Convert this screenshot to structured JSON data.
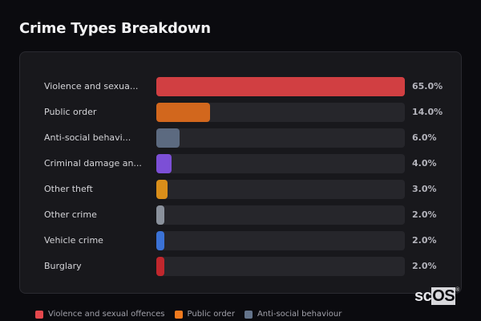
{
  "header": {
    "title": "Crime Types Breakdown"
  },
  "chart_data": {
    "type": "bar",
    "orientation": "horizontal",
    "title": "Crime Types Breakdown",
    "categories": [
      "Violence and sexual offences",
      "Public order",
      "Anti-social behaviour",
      "Criminal damage and arson",
      "Other theft",
      "Other crime",
      "Vehicle crime",
      "Burglary"
    ],
    "display_labels": [
      "Violence and sexua...",
      "Public order",
      "Anti-social behavi...",
      "Criminal damage an...",
      "Other theft",
      "Other crime",
      "Vehicle crime",
      "Burglary"
    ],
    "values": [
      65.0,
      14.0,
      6.0,
      4.0,
      3.0,
      2.0,
      2.0,
      2.0
    ],
    "value_labels": [
      "65.0%",
      "14.0%",
      "6.0%",
      "4.0%",
      "3.0%",
      "2.0%",
      "2.0%",
      "2.0%"
    ],
    "colors": [
      "#d13f42",
      "#d2671d",
      "#5c6a80",
      "#7c4fd6",
      "#d98e1a",
      "#8a919c",
      "#3b72d6",
      "#c0272d"
    ],
    "xlabel": "",
    "ylabel": "",
    "xlim": [
      0,
      65
    ],
    "grid": false,
    "legend": {
      "position": "bottom",
      "entries": [
        {
          "label": "Violence and sexual offences",
          "color": "#e5484d"
        },
        {
          "label": "Public order",
          "color": "#f07a1e"
        },
        {
          "label": "Anti-social behaviour",
          "color": "#64748b"
        }
      ]
    }
  },
  "logo": {
    "text_a": "sc",
    "text_b": "OS",
    "mark": "®"
  }
}
